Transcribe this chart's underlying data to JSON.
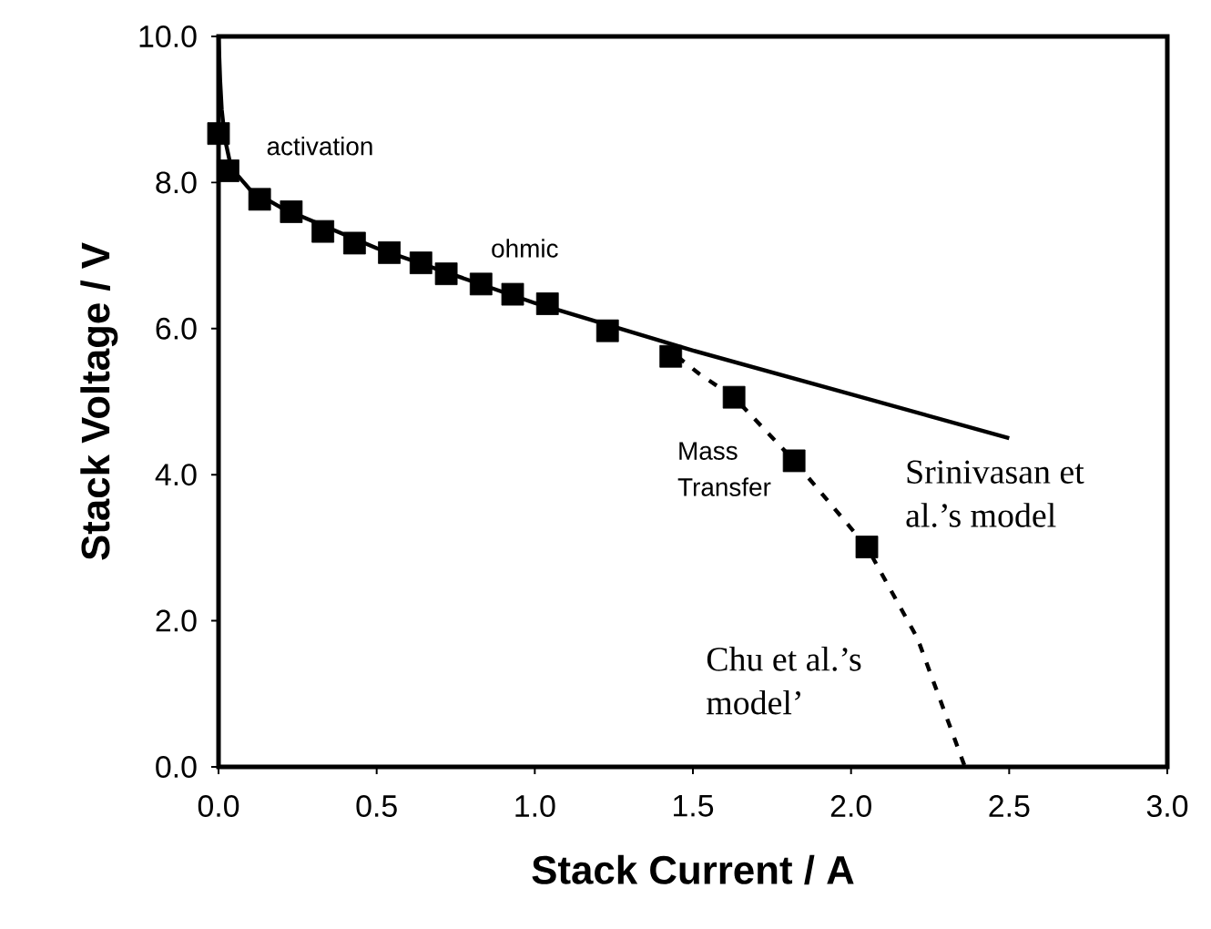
{
  "chart_data": {
    "type": "line",
    "xlabel": "Stack Current / A",
    "ylabel": "Stack Voltage / V",
    "xlim": [
      0,
      3
    ],
    "ylim": [
      0,
      10
    ],
    "xticks": [
      {
        "value": 0,
        "label": "0.0"
      },
      {
        "value": 0.5,
        "label": "0.5"
      },
      {
        "value": 1,
        "label": "1.0"
      },
      {
        "value": 1.5,
        "label": "1.5"
      },
      {
        "value": 2,
        "label": "2.0"
      },
      {
        "value": 2.5,
        "label": "2.5"
      },
      {
        "value": 3,
        "label": "3.0"
      }
    ],
    "yticks": [
      {
        "value": 0,
        "label": "0.0"
      },
      {
        "value": 2,
        "label": "2.0"
      },
      {
        "value": 4,
        "label": "4.0"
      },
      {
        "value": 6,
        "label": "6.0"
      },
      {
        "value": 8,
        "label": "8.0"
      },
      {
        "value": 10,
        "label": "10.0"
      }
    ],
    "annotations": [
      "activation",
      "ohmic",
      "Mass Transfer"
    ],
    "series": [
      {
        "type": "scatter",
        "marker": "square",
        "color": "#000000",
        "x": [
          0.0,
          0.03,
          0.13,
          0.23,
          0.33,
          0.43,
          0.54,
          0.64,
          0.72,
          0.83,
          0.93,
          1.04,
          1.23,
          1.43,
          1.63,
          1.82,
          2.05
        ],
        "values": [
          8.67,
          8.16,
          7.77,
          7.6,
          7.33,
          7.17,
          7.04,
          6.9,
          6.75,
          6.61,
          6.47,
          6.34,
          5.97,
          5.62,
          5.06,
          4.19,
          3.01
        ]
      },
      {
        "name": "Srinivasan et al.’s model",
        "color": "#000000",
        "line_style": "solid",
        "x": [
          0.0,
          0.005,
          0.01,
          0.02,
          0.04,
          0.1,
          0.2,
          0.5,
          1.0,
          1.5,
          2.0,
          2.5
        ],
        "values": [
          10.0,
          9.4,
          9.0,
          8.6,
          8.2,
          7.9,
          7.65,
          7.1,
          6.35,
          5.7,
          5.1,
          4.5
        ]
      },
      {
        "name": "Chu et al.’s model’",
        "color": "#000000",
        "line_style": "dashed",
        "x": [
          1.45,
          1.52,
          1.63,
          1.82,
          2.05,
          2.21,
          2.36
        ],
        "values": [
          5.62,
          5.38,
          5.06,
          4.19,
          3.01,
          1.76,
          0.0
        ]
      }
    ]
  }
}
